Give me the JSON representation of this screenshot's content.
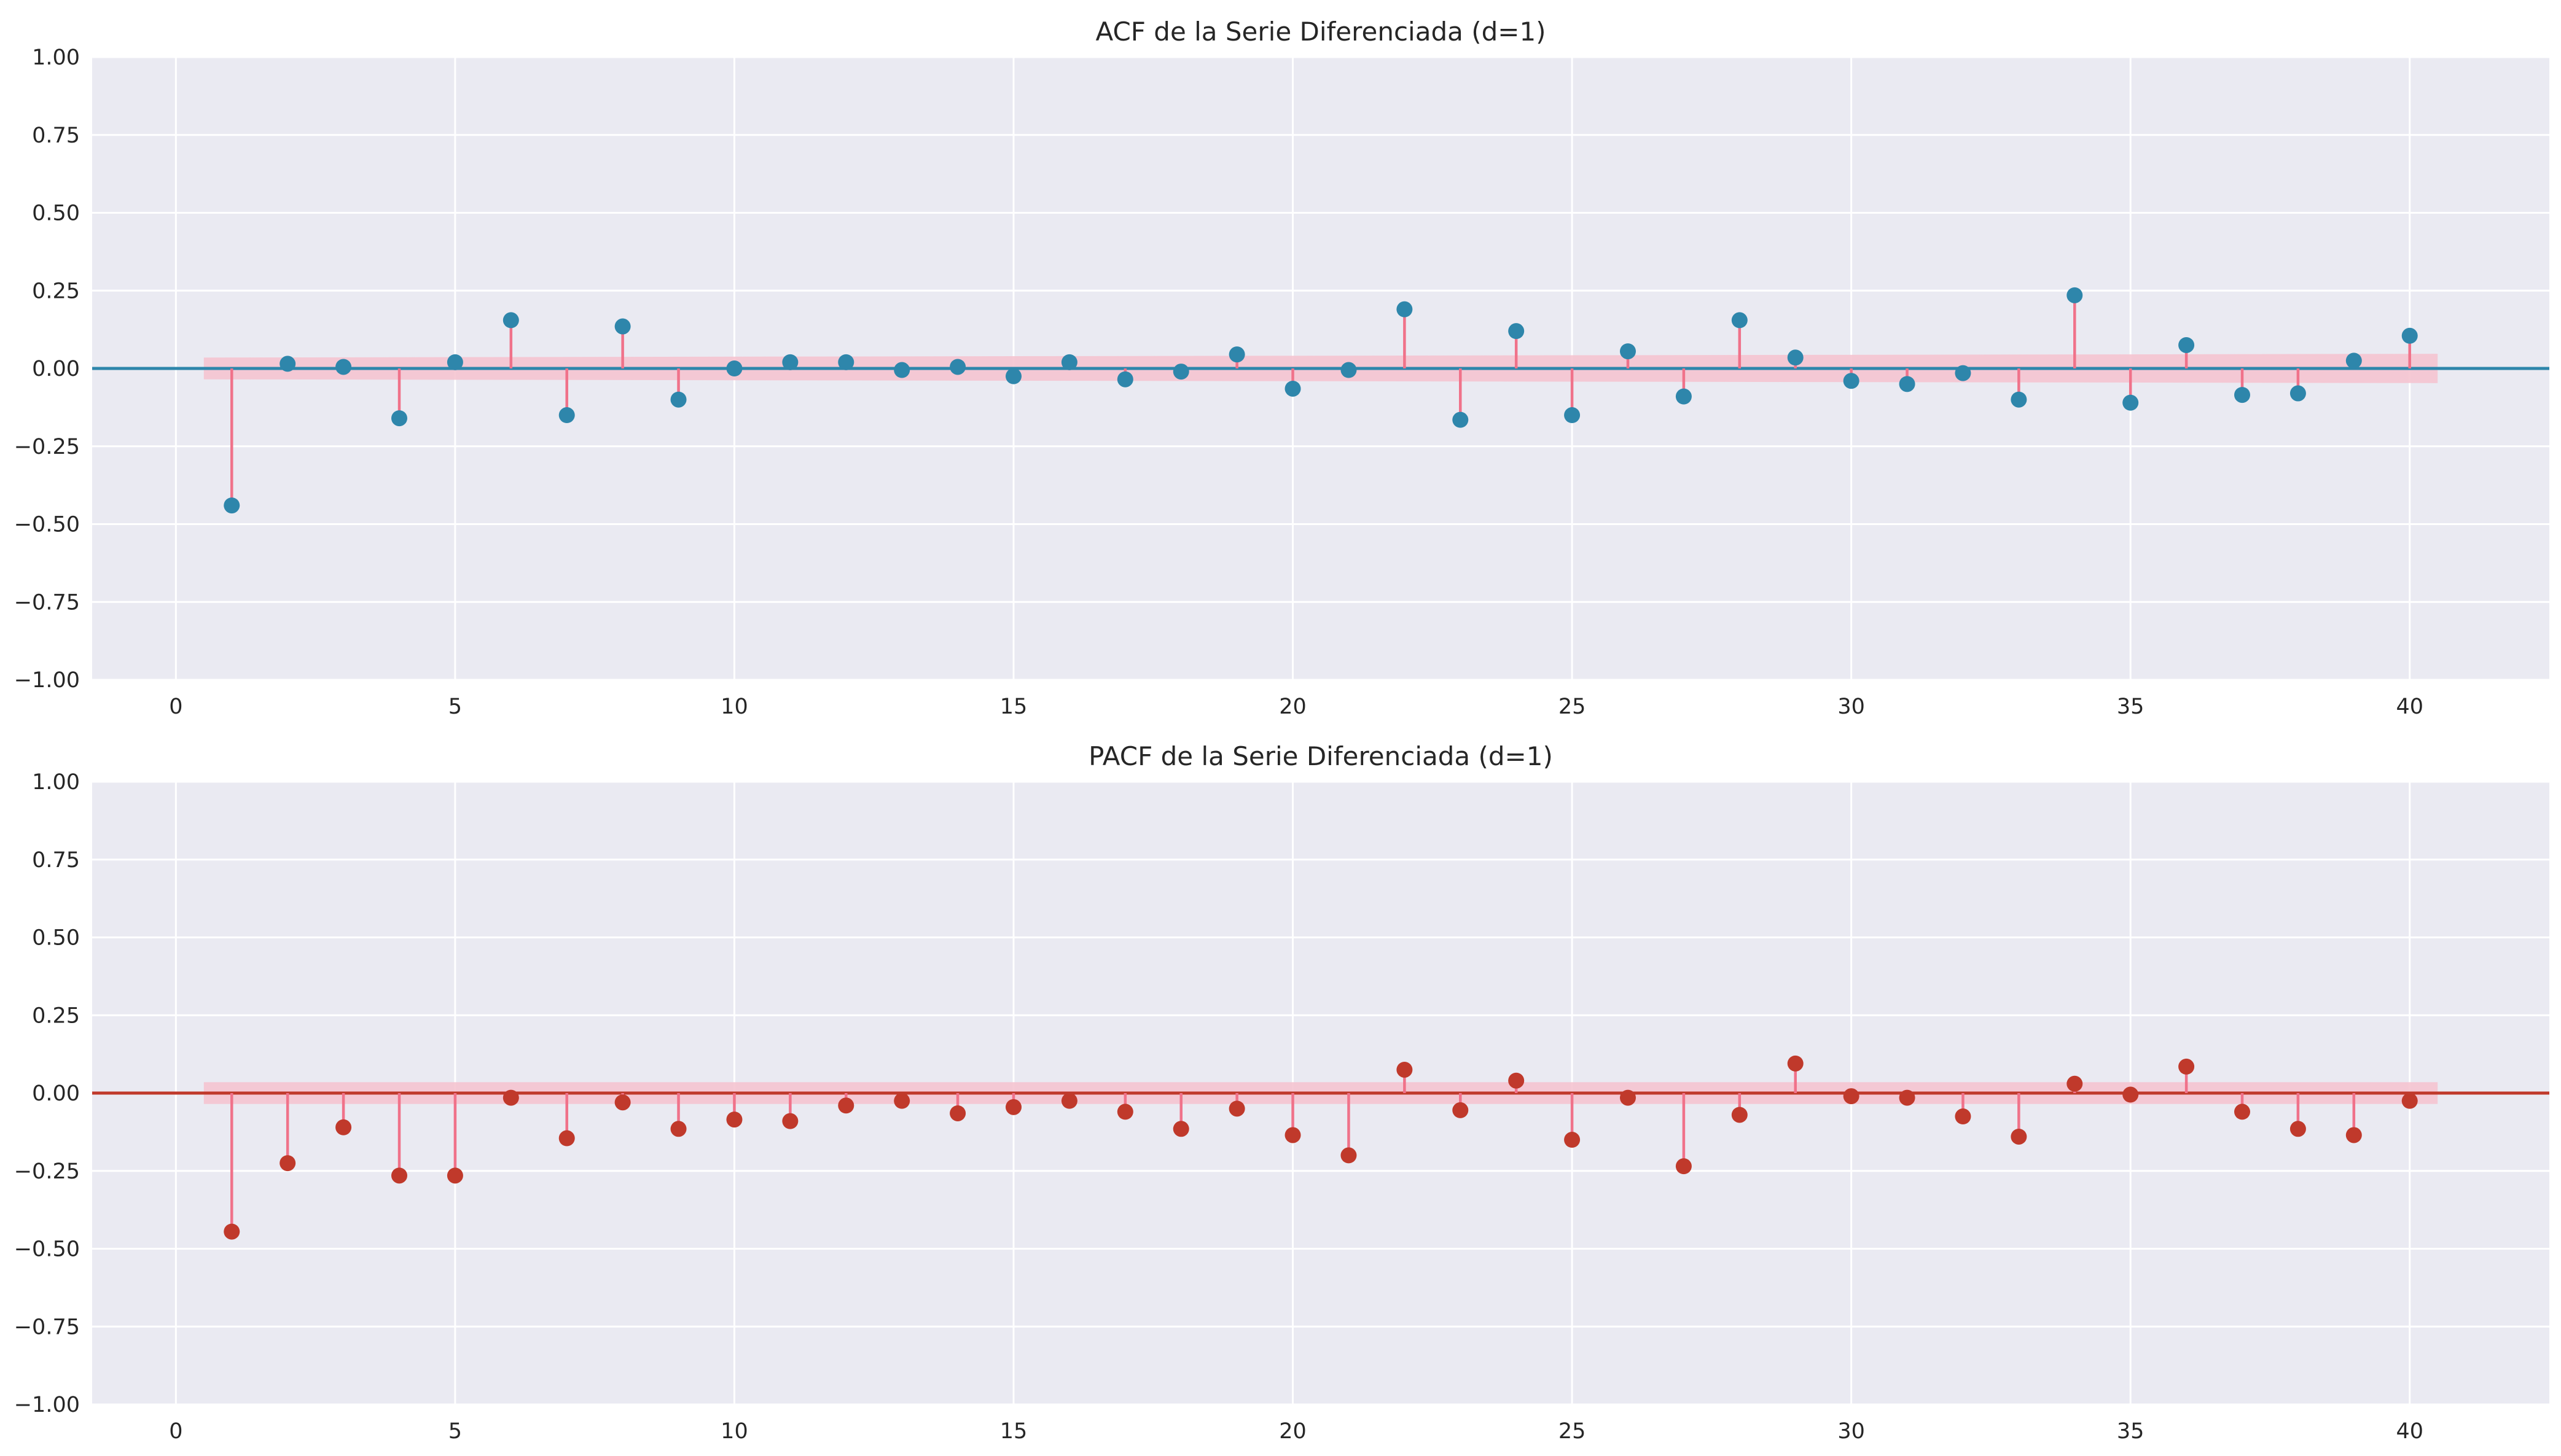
{
  "chart_data": [
    {
      "type": "stem",
      "title": "ACF de la Serie Diferenciada (d=1)",
      "xlabel": "",
      "ylabel": "",
      "xlim": [
        -1.5,
        42.5
      ],
      "ylim": [
        -1.0,
        1.0
      ],
      "x_ticks": [
        "0",
        "5",
        "10",
        "15",
        "20",
        "25",
        "30",
        "35",
        "40"
      ],
      "y_ticks": [
        "−1.00",
        "−0.75",
        "−0.50",
        "−0.25",
        "0.00",
        "0.25",
        "0.50",
        "0.75",
        "1.00"
      ],
      "grid": true,
      "lags": [
        1,
        2,
        3,
        4,
        5,
        6,
        7,
        8,
        9,
        10,
        11,
        12,
        13,
        14,
        15,
        16,
        17,
        18,
        19,
        20,
        21,
        22,
        23,
        24,
        25,
        26,
        27,
        28,
        29,
        30,
        31,
        32,
        33,
        34,
        35,
        36,
        37,
        38,
        39,
        40
      ],
      "values": [
        -0.44,
        0.015,
        0.005,
        -0.16,
        0.02,
        0.155,
        -0.15,
        0.135,
        -0.1,
        0.0,
        0.02,
        0.02,
        -0.005,
        0.005,
        -0.025,
        0.02,
        -0.035,
        -0.01,
        0.045,
        -0.065,
        -0.005,
        0.19,
        -0.165,
        0.12,
        -0.15,
        0.055,
        -0.09,
        0.155,
        0.035,
        -0.04,
        -0.05,
        -0.015,
        -0.1,
        0.235,
        -0.11,
        0.075,
        -0.085,
        -0.08,
        0.025,
        0.105
      ],
      "conf_band": {
        "lag_start": 0.5,
        "lag_end": 40.5,
        "upper_start": 0.035,
        "upper_end": 0.047
      },
      "colors": {
        "marker": "#2e86ab",
        "stem": "#f0728a",
        "baseline": "#2e86ab",
        "band": "#f5c4d0"
      }
    },
    {
      "type": "stem",
      "title": "PACF de la Serie Diferenciada (d=1)",
      "xlabel": "",
      "ylabel": "",
      "xlim": [
        -1.5,
        42.5
      ],
      "ylim": [
        -1.0,
        1.0
      ],
      "x_ticks": [
        "0",
        "5",
        "10",
        "15",
        "20",
        "25",
        "30",
        "35",
        "40"
      ],
      "y_ticks": [
        "−1.00",
        "−0.75",
        "−0.50",
        "−0.25",
        "0.00",
        "0.25",
        "0.50",
        "0.75",
        "1.00"
      ],
      "grid": true,
      "lags": [
        1,
        2,
        3,
        4,
        5,
        6,
        7,
        8,
        9,
        10,
        11,
        12,
        13,
        14,
        15,
        16,
        17,
        18,
        19,
        20,
        21,
        22,
        23,
        24,
        25,
        26,
        27,
        28,
        29,
        30,
        31,
        32,
        33,
        34,
        35,
        36,
        37,
        38,
        39,
        40
      ],
      "values": [
        -0.445,
        -0.225,
        -0.11,
        -0.265,
        -0.265,
        -0.015,
        -0.145,
        -0.03,
        -0.115,
        -0.085,
        -0.09,
        -0.04,
        -0.025,
        -0.065,
        -0.045,
        -0.025,
        -0.06,
        -0.115,
        -0.05,
        -0.135,
        -0.2,
        0.075,
        -0.055,
        0.04,
        -0.15,
        -0.015,
        -0.235,
        -0.07,
        0.095,
        -0.01,
        -0.015,
        -0.075,
        -0.14,
        0.03,
        -0.005,
        0.085,
        -0.06,
        -0.115,
        -0.135,
        -0.025
      ],
      "conf_band": {
        "lag_start": 0.5,
        "lag_end": 40.5,
        "upper_start": 0.035,
        "upper_end": 0.035
      },
      "colors": {
        "marker": "#c0392b",
        "stem": "#f0728a",
        "baseline": "#c0392b",
        "band": "#f5c4d0"
      }
    }
  ]
}
